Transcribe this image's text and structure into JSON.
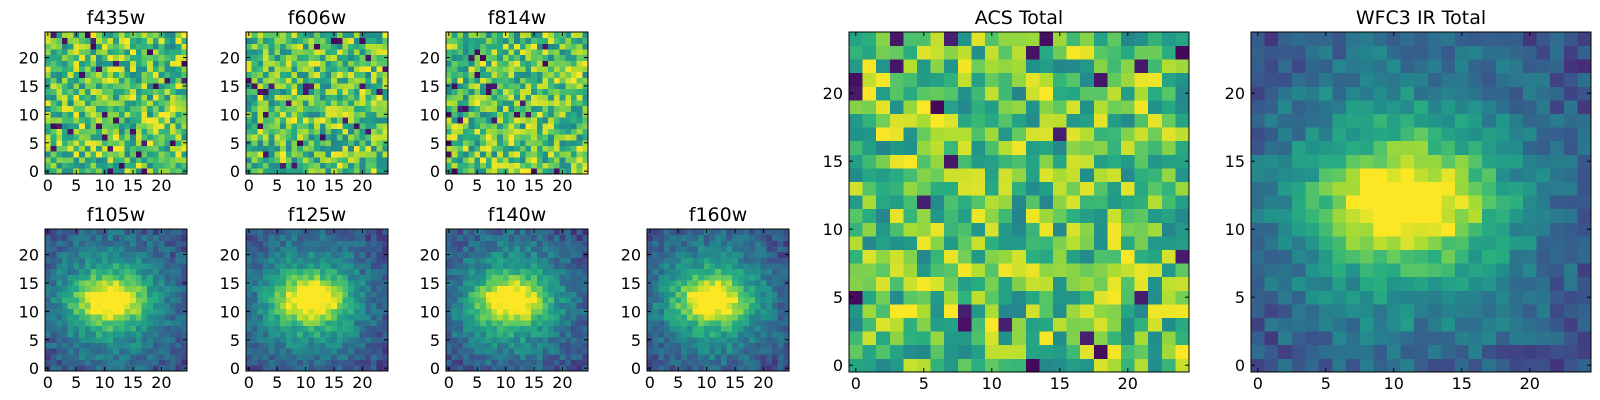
{
  "chart_data": [
    {
      "type": "heatmap",
      "title": "f435w",
      "pattern": "noise",
      "grid": [
        25,
        25
      ],
      "xlim": [
        0,
        25
      ],
      "ylim": [
        0,
        25
      ],
      "xticks": [
        0,
        5,
        10,
        15,
        20
      ],
      "yticks": [
        0,
        5,
        10,
        15,
        20
      ],
      "colormap": "viridis",
      "seed": 11
    },
    {
      "type": "heatmap",
      "title": "f606w",
      "pattern": "noise",
      "grid": [
        25,
        25
      ],
      "xlim": [
        0,
        25
      ],
      "ylim": [
        0,
        25
      ],
      "xticks": [
        0,
        5,
        10,
        15,
        20
      ],
      "yticks": [
        0,
        5,
        10,
        15,
        20
      ],
      "colormap": "viridis",
      "seed": 23
    },
    {
      "type": "heatmap",
      "title": "f814w",
      "pattern": "noise",
      "grid": [
        25,
        25
      ],
      "xlim": [
        0,
        25
      ],
      "ylim": [
        0,
        25
      ],
      "xticks": [
        0,
        5,
        10,
        15,
        20
      ],
      "yticks": [
        0,
        5,
        10,
        15,
        20
      ],
      "colormap": "viridis",
      "seed": 37
    },
    {
      "type": "heatmap",
      "title": "f105w",
      "pattern": "source",
      "grid": [
        25,
        25
      ],
      "xlim": [
        0,
        25
      ],
      "ylim": [
        0,
        25
      ],
      "xticks": [
        0,
        5,
        10,
        15,
        20
      ],
      "yticks": [
        0,
        5,
        10,
        15,
        20
      ],
      "colormap": "viridis",
      "peak": [
        11,
        12
      ],
      "seed": 41
    },
    {
      "type": "heatmap",
      "title": "f125w",
      "pattern": "source",
      "grid": [
        25,
        25
      ],
      "xlim": [
        0,
        25
      ],
      "ylim": [
        0,
        25
      ],
      "xticks": [
        0,
        5,
        10,
        15,
        20
      ],
      "yticks": [
        0,
        5,
        10,
        15,
        20
      ],
      "colormap": "viridis",
      "peak": [
        11,
        12
      ],
      "seed": 53
    },
    {
      "type": "heatmap",
      "title": "f140w",
      "pattern": "source",
      "grid": [
        25,
        25
      ],
      "xlim": [
        0,
        25
      ],
      "ylim": [
        0,
        25
      ],
      "xticks": [
        0,
        5,
        10,
        15,
        20
      ],
      "yticks": [
        0,
        5,
        10,
        15,
        20
      ],
      "colormap": "viridis",
      "peak": [
        11,
        12
      ],
      "seed": 67
    },
    {
      "type": "heatmap",
      "title": "f160w",
      "pattern": "source",
      "grid": [
        25,
        25
      ],
      "xlim": [
        0,
        25
      ],
      "ylim": [
        0,
        25
      ],
      "xticks": [
        0,
        5,
        10,
        15,
        20
      ],
      "yticks": [
        0,
        5,
        10,
        15,
        20
      ],
      "colormap": "viridis",
      "peak": [
        11,
        12
      ],
      "seed": 79
    },
    {
      "type": "heatmap",
      "title": "ACS Total",
      "pattern": "noise",
      "grid": [
        25,
        25
      ],
      "xlim": [
        0,
        25
      ],
      "ylim": [
        0,
        25
      ],
      "xticks": [
        0,
        5,
        10,
        15,
        20
      ],
      "yticks": [
        0,
        5,
        10,
        15,
        20
      ],
      "colormap": "viridis",
      "seed": 97
    },
    {
      "type": "heatmap",
      "title": "WFC3 IR Total",
      "pattern": "source",
      "grid": [
        25,
        25
      ],
      "xlim": [
        0,
        25
      ],
      "ylim": [
        0,
        25
      ],
      "xticks": [
        0,
        5,
        10,
        15,
        20
      ],
      "yticks": [
        0,
        5,
        10,
        15,
        20
      ],
      "colormap": "viridis",
      "peak": [
        11,
        12
      ],
      "seed": 101
    }
  ],
  "colors": {
    "viridis_low": "#440154",
    "viridis_mid": "#21918c",
    "viridis_high": "#fde725"
  }
}
